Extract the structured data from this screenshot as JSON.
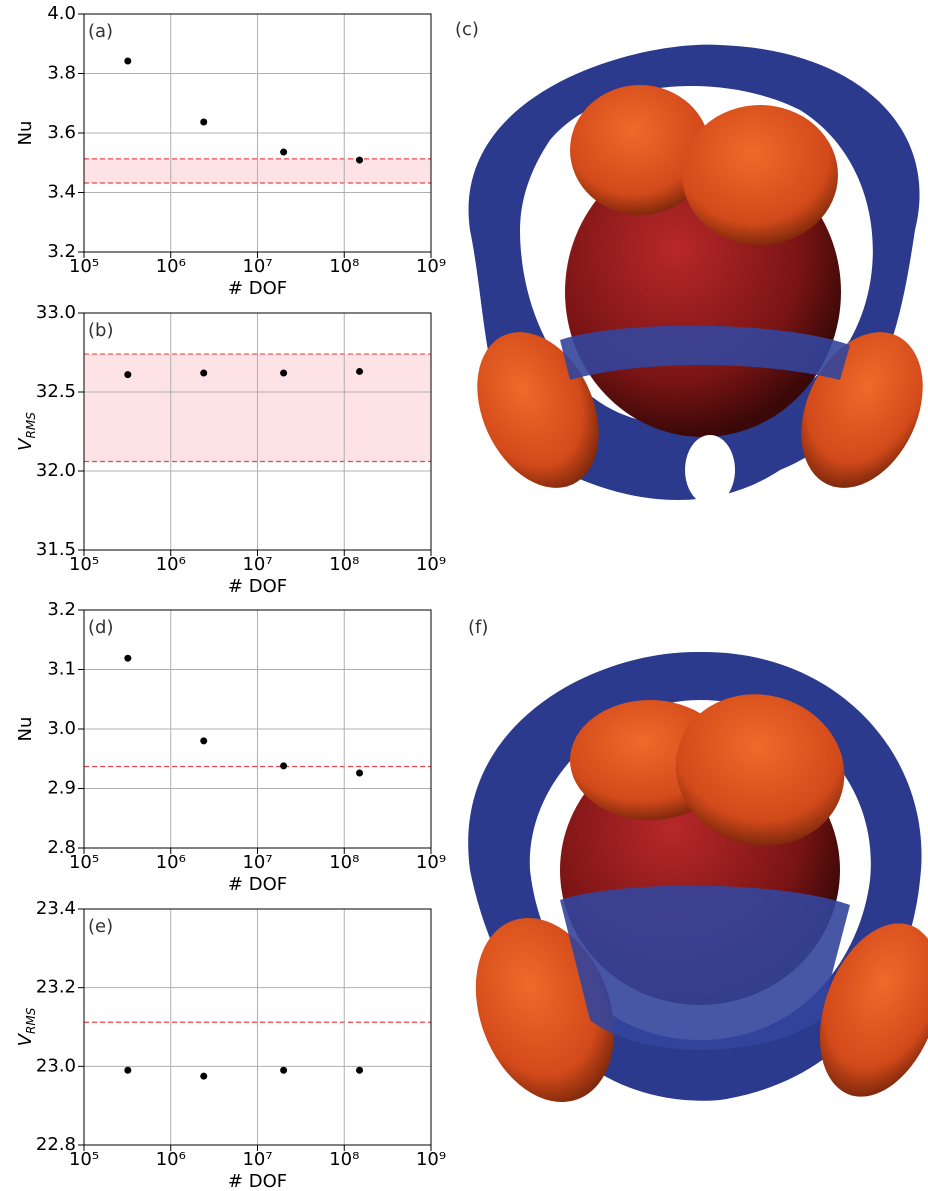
{
  "chart_data": [
    {
      "type": "scatter",
      "panel_label": "(a)",
      "xlabel": "# DOF",
      "ylabel": "Nu",
      "xscale": "log",
      "xlim": [
        100000,
        1000000000
      ],
      "xticks": [
        {
          "value": 100000,
          "label": "10⁵"
        },
        {
          "value": 1000000,
          "label": "10⁶"
        },
        {
          "value": 10000000,
          "label": "10⁷"
        },
        {
          "value": 100000000,
          "label": "10⁸"
        },
        {
          "value": 1000000000,
          "label": "10⁹"
        }
      ],
      "ylim": [
        3.2,
        4.0
      ],
      "yticks": [
        3.2,
        3.4,
        3.6,
        3.8,
        {
          "value": 4.0,
          "label": "4.0"
        }
      ],
      "grid": true,
      "color": "#000000",
      "x": [
        320000,
        2400000,
        20000000,
        150000000
      ],
      "values": [
        3.842,
        3.637,
        3.536,
        3.509
      ],
      "reference_band": [
        3.432,
        3.513
      ],
      "reference_color": "#e8474c",
      "band_color": "#fde3e5"
    },
    {
      "type": "scatter",
      "panel_label": "(b)",
      "xlabel": "# DOF",
      "ylabel": "V",
      "ylabel_subscript": "RMS",
      "xscale": "log",
      "xlim": [
        100000,
        1000000000
      ],
      "xticks": [
        {
          "value": 100000,
          "label": "10⁵"
        },
        {
          "value": 1000000,
          "label": "10⁶"
        },
        {
          "value": 10000000,
          "label": "10⁷"
        },
        {
          "value": 100000000,
          "label": "10⁸"
        },
        {
          "value": 1000000000,
          "label": "10⁹"
        }
      ],
      "ylim": [
        31.5,
        33.0
      ],
      "yticks": [
        31.5,
        {
          "value": 32.0,
          "label": "32.0"
        },
        32.5,
        {
          "value": 33.0,
          "label": "33.0"
        }
      ],
      "grid": true,
      "color": "#000000",
      "x": [
        320000,
        2400000,
        20000000,
        150000000
      ],
      "values": [
        32.61,
        32.62,
        32.62,
        32.63
      ],
      "reference_band": [
        32.06,
        32.74
      ],
      "reference_color": "#e8474c",
      "band_color": "#fde3e5"
    },
    {
      "type": "scatter",
      "panel_label": "(d)",
      "xlabel": "# DOF",
      "ylabel": "Nu",
      "xscale": "log",
      "xlim": [
        100000,
        1000000000
      ],
      "xticks": [
        {
          "value": 100000,
          "label": "10⁵"
        },
        {
          "value": 1000000,
          "label": "10⁶"
        },
        {
          "value": 10000000,
          "label": "10⁷"
        },
        {
          "value": 100000000,
          "label": "10⁸"
        },
        {
          "value": 1000000000,
          "label": "10⁹"
        }
      ],
      "ylim": [
        2.8,
        3.2
      ],
      "yticks": [
        2.8,
        2.9,
        {
          "value": 3.0,
          "label": "3.0"
        },
        3.1,
        3.2
      ],
      "grid": true,
      "color": "#000000",
      "x": [
        320000,
        2400000,
        20000000,
        150000000
      ],
      "values": [
        3.119,
        2.98,
        2.938,
        2.926
      ],
      "reference_line": 2.937,
      "reference_color": "#e8474c"
    },
    {
      "type": "scatter",
      "panel_label": "(e)",
      "xlabel": "# DOF",
      "ylabel": "V",
      "ylabel_subscript": "RMS",
      "xscale": "log",
      "xlim": [
        100000,
        1000000000
      ],
      "xticks": [
        {
          "value": 100000,
          "label": "10⁵"
        },
        {
          "value": 1000000,
          "label": "10⁶"
        },
        {
          "value": 10000000,
          "label": "10⁷"
        },
        {
          "value": 100000000,
          "label": "10⁸"
        },
        {
          "value": 1000000000,
          "label": "10⁹"
        }
      ],
      "ylim": [
        22.8,
        23.4
      ],
      "yticks": [
        22.8,
        {
          "value": 23.0,
          "label": "23.0"
        },
        23.2,
        23.4
      ],
      "grid": true,
      "color": "#000000",
      "x": [
        320000,
        2400000,
        20000000,
        150000000
      ],
      "values": [
        22.99,
        22.975,
        22.99,
        22.99
      ],
      "reference_line": 23.112,
      "reference_color": "#e8474c"
    }
  ],
  "images": [
    {
      "label": "(c)"
    },
    {
      "label": "(f)"
    }
  ]
}
